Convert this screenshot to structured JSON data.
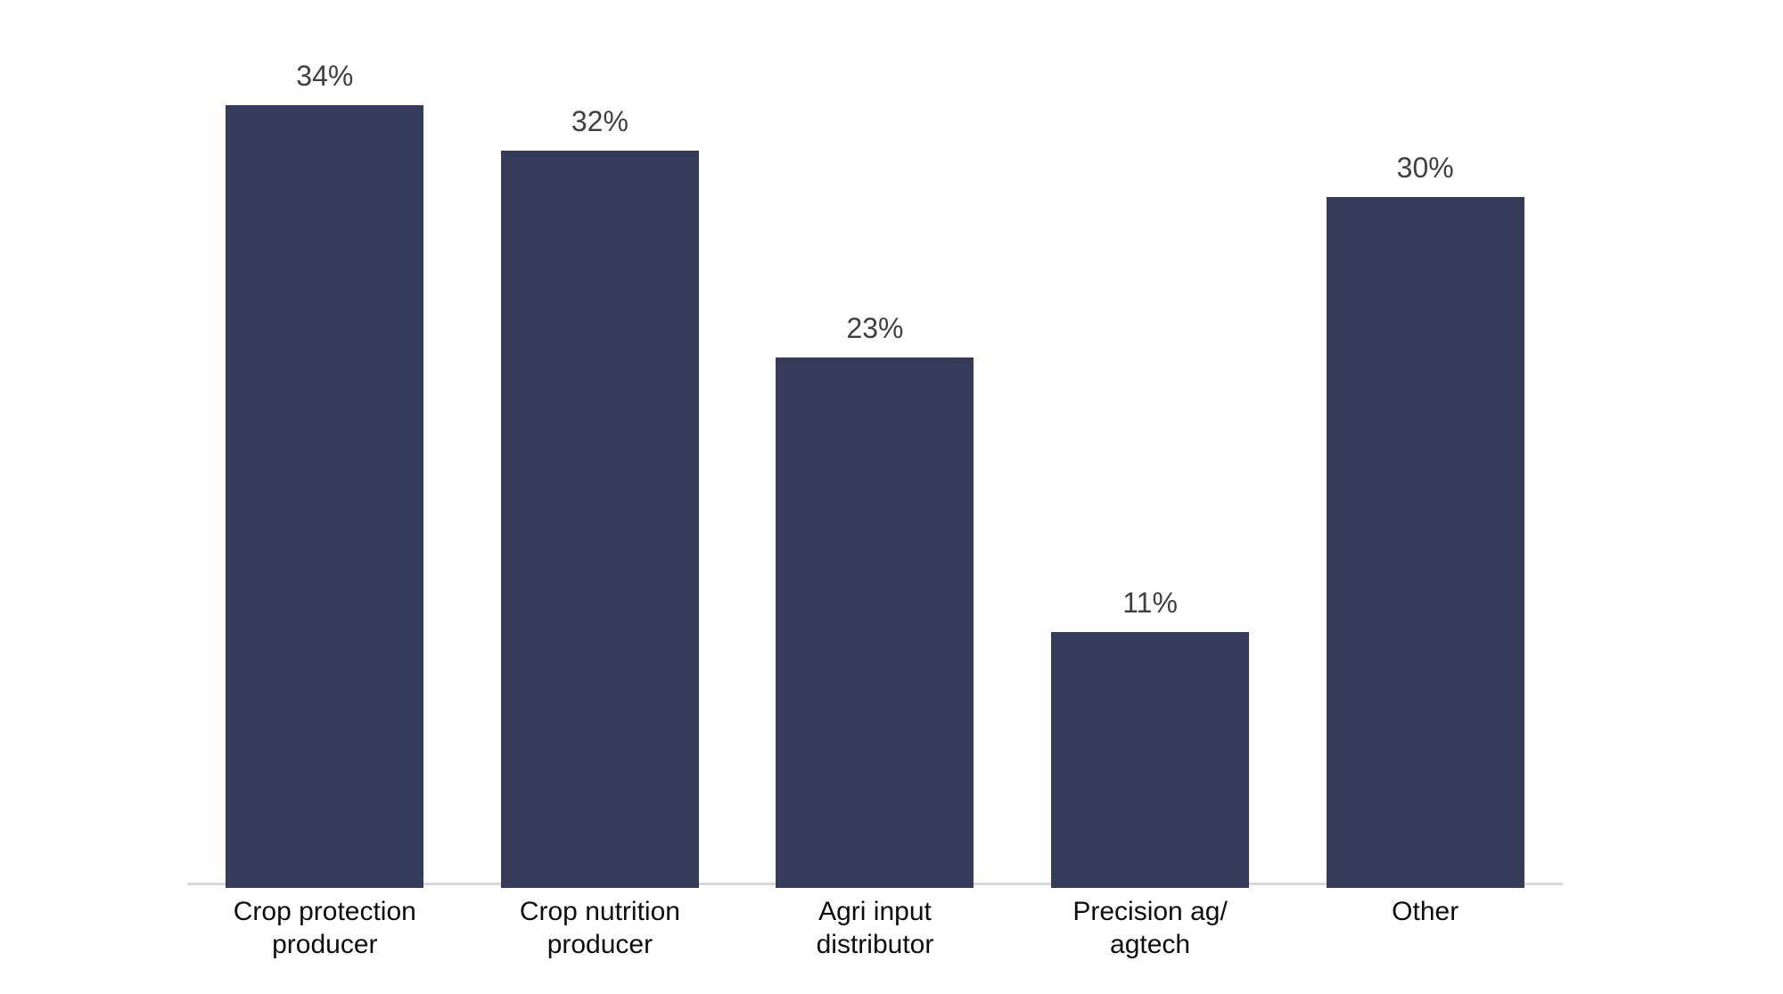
{
  "chart_data": {
    "type": "bar",
    "categories": [
      "Crop protection\nproducer",
      "Crop nutrition\nproducer",
      "Agri input\ndistributor",
      "Precision ag/\nagtech",
      "Other"
    ],
    "values": [
      34,
      32,
      23,
      11,
      30
    ],
    "data_labels": [
      "34%",
      "32%",
      "23%",
      "11%",
      "30%"
    ],
    "title": "",
    "xlabel": "",
    "ylabel": "",
    "ylim": [
      0,
      38.6
    ],
    "grid": false,
    "legend": false,
    "bar_color": "#373b5a",
    "axis_line_color": "#d8d8d8",
    "value_label_color": "#404040",
    "category_label_color": "#0d0d0d",
    "background_color": "#ffffff"
  }
}
